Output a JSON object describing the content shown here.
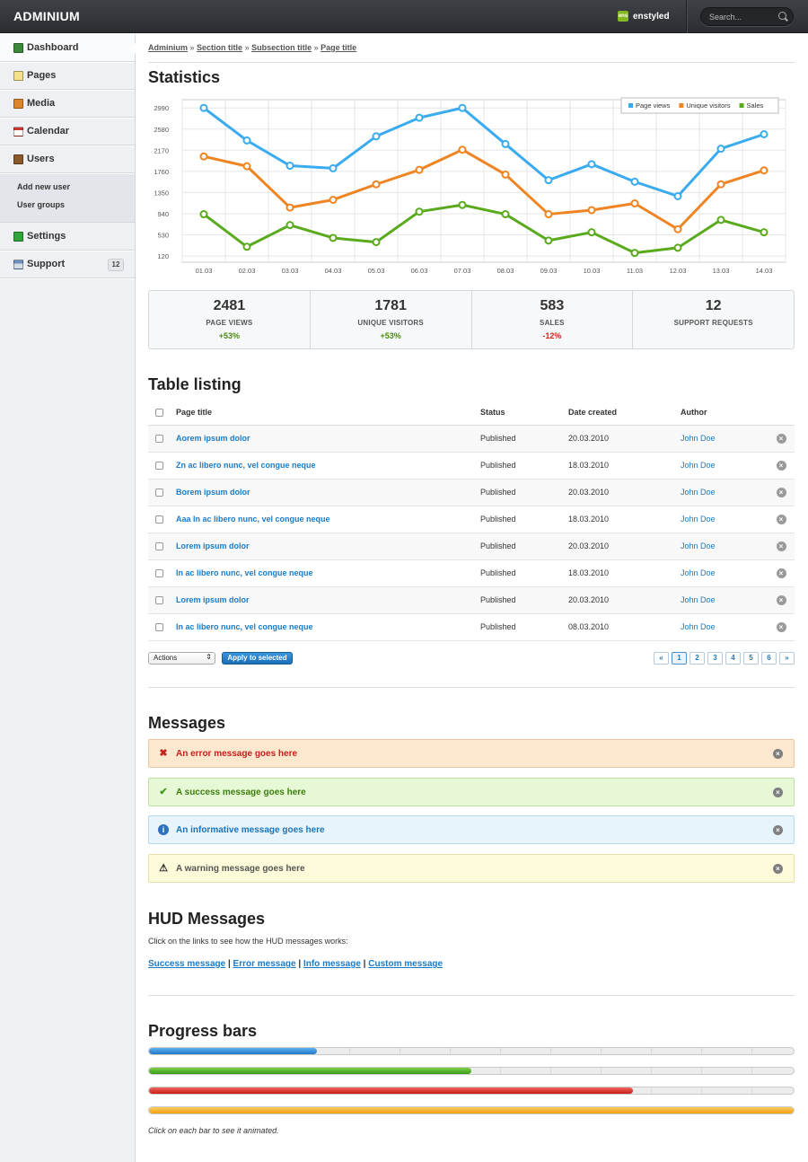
{
  "app": {
    "brand": "ADMINIUM",
    "user_logo_text": "ens",
    "user_name": "enstyled"
  },
  "search": {
    "placeholder": "Search..."
  },
  "sidebar": {
    "items": [
      {
        "label": "Dashboard",
        "icon": "dashboard-icon",
        "color": "#3b8a3b"
      },
      {
        "label": "Pages",
        "icon": "pages-icon",
        "color": "#f2e08a"
      },
      {
        "label": "Media",
        "icon": "media-icon",
        "color": "#d9872a"
      },
      {
        "label": "Calendar",
        "icon": "calendar-icon",
        "color": "#c8382e"
      },
      {
        "label": "Users",
        "icon": "users-icon",
        "color": "#8a5a2a"
      },
      {
        "label": "Settings",
        "icon": "settings-icon",
        "color": "#2fa53b"
      },
      {
        "label": "Support",
        "icon": "support-icon",
        "color": "#6a7b8f",
        "badge": "12"
      }
    ],
    "users_subitems": [
      "Add new user",
      "User groups"
    ]
  },
  "breadcrumb": [
    "Adminium",
    "Section title",
    "Subsection title",
    "Page title"
  ],
  "breadcrumb_separator": "»",
  "sections": {
    "statistics": "Statistics",
    "table": "Table listing",
    "messages": "Messages",
    "hud": "HUD Messages",
    "progress": "Progress bars"
  },
  "chart_data": {
    "type": "line",
    "x": [
      "01.03",
      "02.03",
      "03.03",
      "04.03",
      "05.03",
      "06.03",
      "07.03",
      "08.03",
      "09.03",
      "10.03",
      "11.03",
      "12.03",
      "13.03",
      "14.03"
    ],
    "y_ticks": [
      120,
      530,
      940,
      1350,
      1760,
      2170,
      2580,
      2990
    ],
    "ylim": [
      0,
      3150
    ],
    "grid": true,
    "legend": "top-right",
    "series": [
      {
        "name": "Page views",
        "color": "#3aabef",
        "values": [
          2990,
          2360,
          1870,
          1820,
          2440,
          2800,
          2990,
          2290,
          1590,
          1900,
          1560,
          1280,
          2200,
          2480
        ]
      },
      {
        "name": "Unique visitors",
        "color": "#ef8423",
        "values": [
          2050,
          1860,
          1060,
          1210,
          1510,
          1790,
          2180,
          1700,
          930,
          1010,
          1140,
          640,
          1510,
          1780
        ]
      },
      {
        "name": "Sales",
        "color": "#5aaa1e",
        "values": [
          930,
          300,
          720,
          470,
          390,
          980,
          1110,
          930,
          420,
          580,
          180,
          280,
          820,
          580
        ]
      }
    ]
  },
  "stats": [
    {
      "value": "2481",
      "label": "PAGE VIEWS",
      "change": "+53%",
      "trend": "up"
    },
    {
      "value": "1781",
      "label": "UNIQUE VISITORS",
      "change": "+53%",
      "trend": "up"
    },
    {
      "value": "583",
      "label": "SALES",
      "change": "-12%",
      "trend": "down"
    },
    {
      "value": "12",
      "label": "SUPPORT REQUESTS",
      "change": "",
      "trend": "none"
    }
  ],
  "table": {
    "headers": {
      "title": "Page title",
      "status": "Status",
      "date": "Date created",
      "author": "Author"
    },
    "rows": [
      {
        "title": "Aorem ipsum dolor",
        "status": "Published",
        "date": "20.03.2010",
        "author": "John Doe"
      },
      {
        "title": "Zn ac libero nunc, vel congue neque",
        "status": "Published",
        "date": "18.03.2010",
        "author": "John Doe"
      },
      {
        "title": "Borem ipsum dolor",
        "status": "Published",
        "date": "20.03.2010",
        "author": "John Doe"
      },
      {
        "title": "Aaa In ac libero nunc, vel congue neque",
        "status": "Published",
        "date": "18.03.2010",
        "author": "John Doe"
      },
      {
        "title": "Lorem ipsum dolor",
        "status": "Published",
        "date": "20.03.2010",
        "author": "John Doe"
      },
      {
        "title": "In ac libero nunc, vel congue neque",
        "status": "Published",
        "date": "18.03.2010",
        "author": "John Doe"
      },
      {
        "title": "Lorem ipsum dolor",
        "status": "Published",
        "date": "20.03.2010",
        "author": "John Doe"
      },
      {
        "title": "In ac libero nunc, vel congue neque",
        "status": "Published",
        "date": "08.03.2010",
        "author": "John Doe"
      }
    ],
    "actions_label": "Actions",
    "apply_label": "Apply to selected",
    "pager": [
      "«",
      "1",
      "2",
      "3",
      "4",
      "5",
      "6",
      "»"
    ],
    "current_page": "1"
  },
  "messages": {
    "error": "An error message goes here",
    "success": "A success message goes here",
    "info": "An informative message goes here",
    "warning": "A warning message goes here"
  },
  "hud": {
    "intro": "Click on the links to see how the HUD messages works:",
    "links": [
      "Success message",
      "Error message",
      "Info message",
      "Custom message"
    ],
    "separator": "|"
  },
  "progress": {
    "bars": [
      {
        "color": "blue",
        "percent": 26
      },
      {
        "color": "green",
        "percent": 50
      },
      {
        "color": "red",
        "percent": 75
      },
      {
        "color": "orange",
        "percent": 100
      }
    ],
    "note": "Click on each bar to see it animated."
  }
}
